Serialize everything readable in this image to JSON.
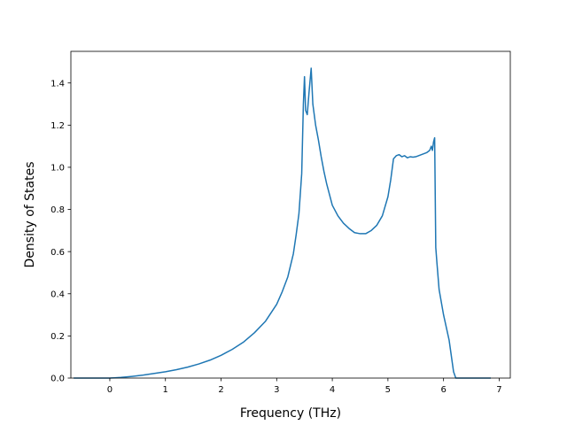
{
  "chart_data": {
    "type": "line",
    "title": "",
    "xlabel": "Frequency (THz)",
    "ylabel": "Density of States",
    "xlim": [
      -0.7,
      7.2
    ],
    "ylim": [
      0.0,
      1.55
    ],
    "xticks": [
      0,
      1,
      2,
      3,
      4,
      5,
      6,
      7
    ],
    "yticks": [
      0.0,
      0.2,
      0.4,
      0.6,
      0.8,
      1.0,
      1.2,
      1.4
    ],
    "xtick_labels": [
      "0",
      "1",
      "2",
      "3",
      "4",
      "5",
      "6",
      "7"
    ],
    "ytick_labels": [
      "0.0",
      "0.2",
      "0.4",
      "0.6",
      "0.8",
      "1.0",
      "1.2",
      "1.4"
    ],
    "grid": false,
    "legend": "none",
    "line_color": "#1f77b4",
    "series": [
      {
        "x": [
          -0.65,
          -0.3,
          0.0,
          0.2,
          0.4,
          0.6,
          0.8,
          1.0,
          1.2,
          1.4,
          1.6,
          1.8,
          2.0,
          2.2,
          2.4,
          2.6,
          2.8,
          3.0,
          3.1,
          3.2,
          3.3,
          3.35,
          3.4,
          3.45,
          3.48,
          3.5,
          3.52,
          3.55,
          3.58,
          3.62,
          3.65,
          3.7,
          3.75,
          3.8,
          3.85,
          3.9,
          4.0,
          4.1,
          4.2,
          4.3,
          4.4,
          4.5,
          4.6,
          4.7,
          4.8,
          4.9,
          5.0,
          5.05,
          5.1,
          5.15,
          5.2,
          5.25,
          5.3,
          5.35,
          5.4,
          5.45,
          5.5,
          5.6,
          5.7,
          5.75,
          5.78,
          5.8,
          5.82,
          5.84,
          5.86,
          5.88,
          5.92,
          6.0,
          6.1,
          6.18,
          6.22,
          6.3,
          6.5,
          6.7,
          6.85
        ],
        "y": [
          0.0,
          0.0,
          0.0,
          0.003,
          0.008,
          0.014,
          0.022,
          0.03,
          0.04,
          0.052,
          0.067,
          0.085,
          0.108,
          0.136,
          0.17,
          0.215,
          0.27,
          0.35,
          0.41,
          0.48,
          0.59,
          0.68,
          0.78,
          0.97,
          1.3,
          1.43,
          1.27,
          1.25,
          1.35,
          1.47,
          1.3,
          1.2,
          1.13,
          1.05,
          0.98,
          0.92,
          0.82,
          0.77,
          0.735,
          0.71,
          0.69,
          0.685,
          0.685,
          0.7,
          0.725,
          0.77,
          0.86,
          0.94,
          1.04,
          1.055,
          1.06,
          1.05,
          1.055,
          1.045,
          1.05,
          1.048,
          1.05,
          1.06,
          1.07,
          1.08,
          1.1,
          1.08,
          1.12,
          1.14,
          0.62,
          0.55,
          0.42,
          0.3,
          0.18,
          0.03,
          0.0,
          0.0,
          0.0,
          0.0,
          0.0
        ]
      }
    ]
  }
}
